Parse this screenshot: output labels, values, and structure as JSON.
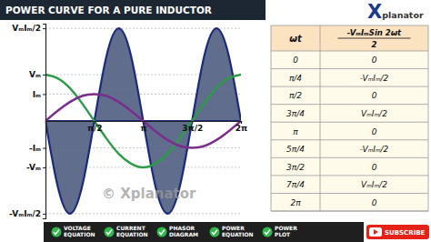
{
  "chart_data": {
    "type": "line",
    "title": "POWER CURVE FOR A PURE INDUCTOR",
    "x": [
      0,
      0.3927,
      0.7854,
      1.1781,
      1.5708,
      1.9635,
      2.3562,
      2.7489,
      3.1416,
      3.5343,
      3.927,
      4.3197,
      4.7124,
      5.1051,
      5.4978,
      5.8905,
      6.2832
    ],
    "series": [
      {
        "type": "area",
        "color": "#1b2a7a",
        "values": [
          0,
          -1.41,
          -2,
          -1.41,
          0,
          1.41,
          2,
          1.41,
          0,
          -1.41,
          -2,
          -1.41,
          0,
          1.41,
          2,
          1.41,
          0
        ]
      },
      {
        "type": "line",
        "color": "#2a9d46",
        "values": [
          1,
          0.92,
          0.71,
          0.38,
          0,
          -0.38,
          -0.71,
          -0.92,
          -1,
          -0.92,
          -0.71,
          -0.38,
          0,
          0.38,
          0.71,
          0.92,
          1
        ]
      },
      {
        "type": "line",
        "color": "#7b2d8e",
        "values": [
          0,
          0.22,
          0.41,
          0.54,
          0.58,
          0.54,
          0.41,
          0.22,
          0,
          -0.22,
          -0.41,
          -0.54,
          -0.58,
          -0.54,
          -0.41,
          -0.22,
          0
        ]
      }
    ],
    "xlim": [
      0,
      6.2832
    ],
    "xticks": [
      {
        "value": 1.5708,
        "label": "π/2"
      },
      {
        "value": 3.1416,
        "label": "π"
      },
      {
        "value": 4.7124,
        "label": "3π/2"
      },
      {
        "value": 6.2832,
        "label": "2π"
      }
    ],
    "ylim": [
      -2.1,
      2.1
    ],
    "yticks": [
      {
        "value": -2,
        "label": "-VₘIₘ/2"
      },
      {
        "value": -1,
        "label": "-Vₘ"
      },
      {
        "value": -0.58,
        "label": "-Iₘ"
      },
      {
        "value": 0.58,
        "label": "Iₘ"
      },
      {
        "value": 1,
        "label": "Vₘ"
      },
      {
        "value": 2,
        "label": "VₘIₘ/2"
      }
    ],
    "grid": true
  },
  "logo": "Xplanator",
  "watermark": "© Xplanator",
  "table": {
    "header": [
      "ωt",
      {
        "numerator": "-VₘIₘSin 2ωt",
        "denominator": "2"
      }
    ],
    "rows": [
      [
        "0",
        "0"
      ],
      [
        "π/4",
        "-VₘIₘ/2"
      ],
      [
        "π/2",
        "0"
      ],
      [
        "3π/4",
        "VₘIₘ/2"
      ],
      [
        "π",
        "0"
      ],
      [
        "5π/4",
        "-VₘIₘ/2"
      ],
      [
        "3π/2",
        "0"
      ],
      [
        "7π/4",
        "VₘIₘ/2"
      ],
      [
        "2π",
        "0"
      ]
    ]
  },
  "footer": {
    "items": [
      [
        "VOLTAGE",
        "EQUATION"
      ],
      [
        "CURRENT",
        "EQUATION"
      ],
      [
        "PHASOR",
        "DIAGRAM"
      ],
      [
        "POWER",
        "EQUATION"
      ],
      [
        "POWER",
        "PLOT"
      ]
    ],
    "button": "SUBSCRIBE"
  }
}
